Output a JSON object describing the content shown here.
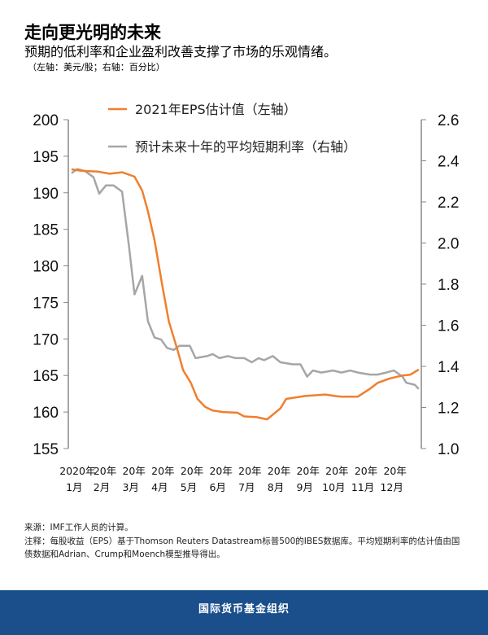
{
  "title": "走向更光明的未来",
  "subtitle": "预期的低利率和企业盈利改善支撑了市场的乐观情绪。",
  "units": "（左轴：美元/股；右轴：百分比）",
  "chart_data": {
    "type": "line",
    "left_axis": {
      "ylim": [
        155,
        200
      ],
      "ticks": [
        "155",
        "160",
        "165",
        "170",
        "175",
        "180",
        "185",
        "190",
        "195",
        "200"
      ]
    },
    "right_axis": {
      "ylim": [
        1.0,
        2.6
      ],
      "ticks": [
        "1.0",
        "1.2",
        "1.4",
        "1.6",
        "1.8",
        "2.0",
        "2.2",
        "2.4",
        "2.6"
      ]
    },
    "xlim": [
      "2020-01-01",
      "2020-12-31"
    ],
    "x_tick_labels": [
      [
        "2020年",
        "1月"
      ],
      [
        "20年",
        "2月"
      ],
      [
        "20年",
        "3月"
      ],
      [
        "20年",
        "4月"
      ],
      [
        "20年",
        "5月"
      ],
      [
        "20年",
        "6月"
      ],
      [
        "20年",
        "7月"
      ],
      [
        "20年",
        "8月"
      ],
      [
        "20年",
        "9月"
      ],
      [
        "20年",
        "10月"
      ],
      [
        "20年",
        "11月"
      ],
      [
        "20年",
        "12月"
      ]
    ],
    "legend_placement": "top",
    "series": [
      {
        "name": "2021年EPS估计值（左轴）",
        "axis": "left",
        "color": "#f07f2d",
        "x": [
          "2020-01-01",
          "2020-01-11",
          "2020-01-28",
          "2020-02-10",
          "2020-02-23",
          "2020-03-07",
          "2020-03-15",
          "2020-03-21",
          "2020-03-28",
          "2020-04-05",
          "2020-04-12",
          "2020-04-21",
          "2020-04-27",
          "2020-05-05",
          "2020-05-12",
          "2020-05-20",
          "2020-05-28",
          "2020-06-08",
          "2020-06-23",
          "2020-06-30",
          "2020-07-13",
          "2020-07-24",
          "2020-08-07",
          "2020-08-13",
          "2020-09-02",
          "2020-09-23",
          "2020-10-03",
          "2020-10-10",
          "2020-10-27",
          "2020-11-09",
          "2020-11-17",
          "2020-11-30",
          "2020-12-13",
          "2020-12-21",
          "2020-12-30"
        ],
        "y": [
          193.2,
          193.0,
          192.9,
          192.6,
          192.8,
          192.2,
          190.3,
          187.5,
          183.5,
          177.4,
          172.4,
          168.5,
          165.7,
          164.0,
          161.8,
          160.7,
          160.2,
          160.0,
          159.9,
          159.4,
          159.3,
          159.0,
          160.5,
          161.8,
          162.2,
          162.4,
          162.2,
          162.1,
          162.1,
          163.2,
          164.0,
          164.6,
          165.0,
          165.1,
          165.8
        ]
      },
      {
        "name": "预计未来十年的平均短期利率（右轴）",
        "axis": "right",
        "color": "#a6a6a6",
        "x": [
          "2020-01-01",
          "2020-01-07",
          "2020-01-15",
          "2020-01-24",
          "2020-01-30",
          "2020-02-06",
          "2020-02-14",
          "2020-02-23",
          "2020-03-01",
          "2020-03-07",
          "2020-03-15",
          "2020-03-21",
          "2020-03-28",
          "2020-04-04",
          "2020-04-10",
          "2020-04-17",
          "2020-04-23",
          "2020-05-04",
          "2020-05-10",
          "2020-05-22",
          "2020-05-28",
          "2020-06-04",
          "2020-06-13",
          "2020-06-21",
          "2020-06-30",
          "2020-07-08",
          "2020-07-15",
          "2020-07-21",
          "2020-07-30",
          "2020-08-07",
          "2020-08-20",
          "2020-08-28",
          "2020-09-04",
          "2020-09-10",
          "2020-09-19",
          "2020-10-01",
          "2020-10-10",
          "2020-10-19",
          "2020-10-27",
          "2020-11-09",
          "2020-11-17",
          "2020-11-26",
          "2020-12-04",
          "2020-12-13",
          "2020-12-17",
          "2020-12-26",
          "2020-12-30"
        ],
        "y": [
          2.34,
          2.36,
          2.35,
          2.32,
          2.24,
          2.28,
          2.28,
          2.25,
          1.99,
          1.75,
          1.84,
          1.62,
          1.54,
          1.53,
          1.49,
          1.48,
          1.5,
          1.5,
          1.44,
          1.45,
          1.46,
          1.44,
          1.45,
          1.44,
          1.44,
          1.42,
          1.44,
          1.43,
          1.45,
          1.42,
          1.41,
          1.41,
          1.35,
          1.38,
          1.37,
          1.38,
          1.37,
          1.38,
          1.37,
          1.36,
          1.36,
          1.37,
          1.38,
          1.35,
          1.32,
          1.31,
          1.29
        ]
      }
    ]
  },
  "notes": {
    "source": "来源：IMF工作人员的计算。",
    "note": "注释：每股收益（EPS）基于Thomson Reuters Datastream标普500的IBES数据库。平均短期利率的估计值由国债数据和Adrian、Crump和Moench模型推导得出。"
  },
  "footer": "国际货币基金组织"
}
